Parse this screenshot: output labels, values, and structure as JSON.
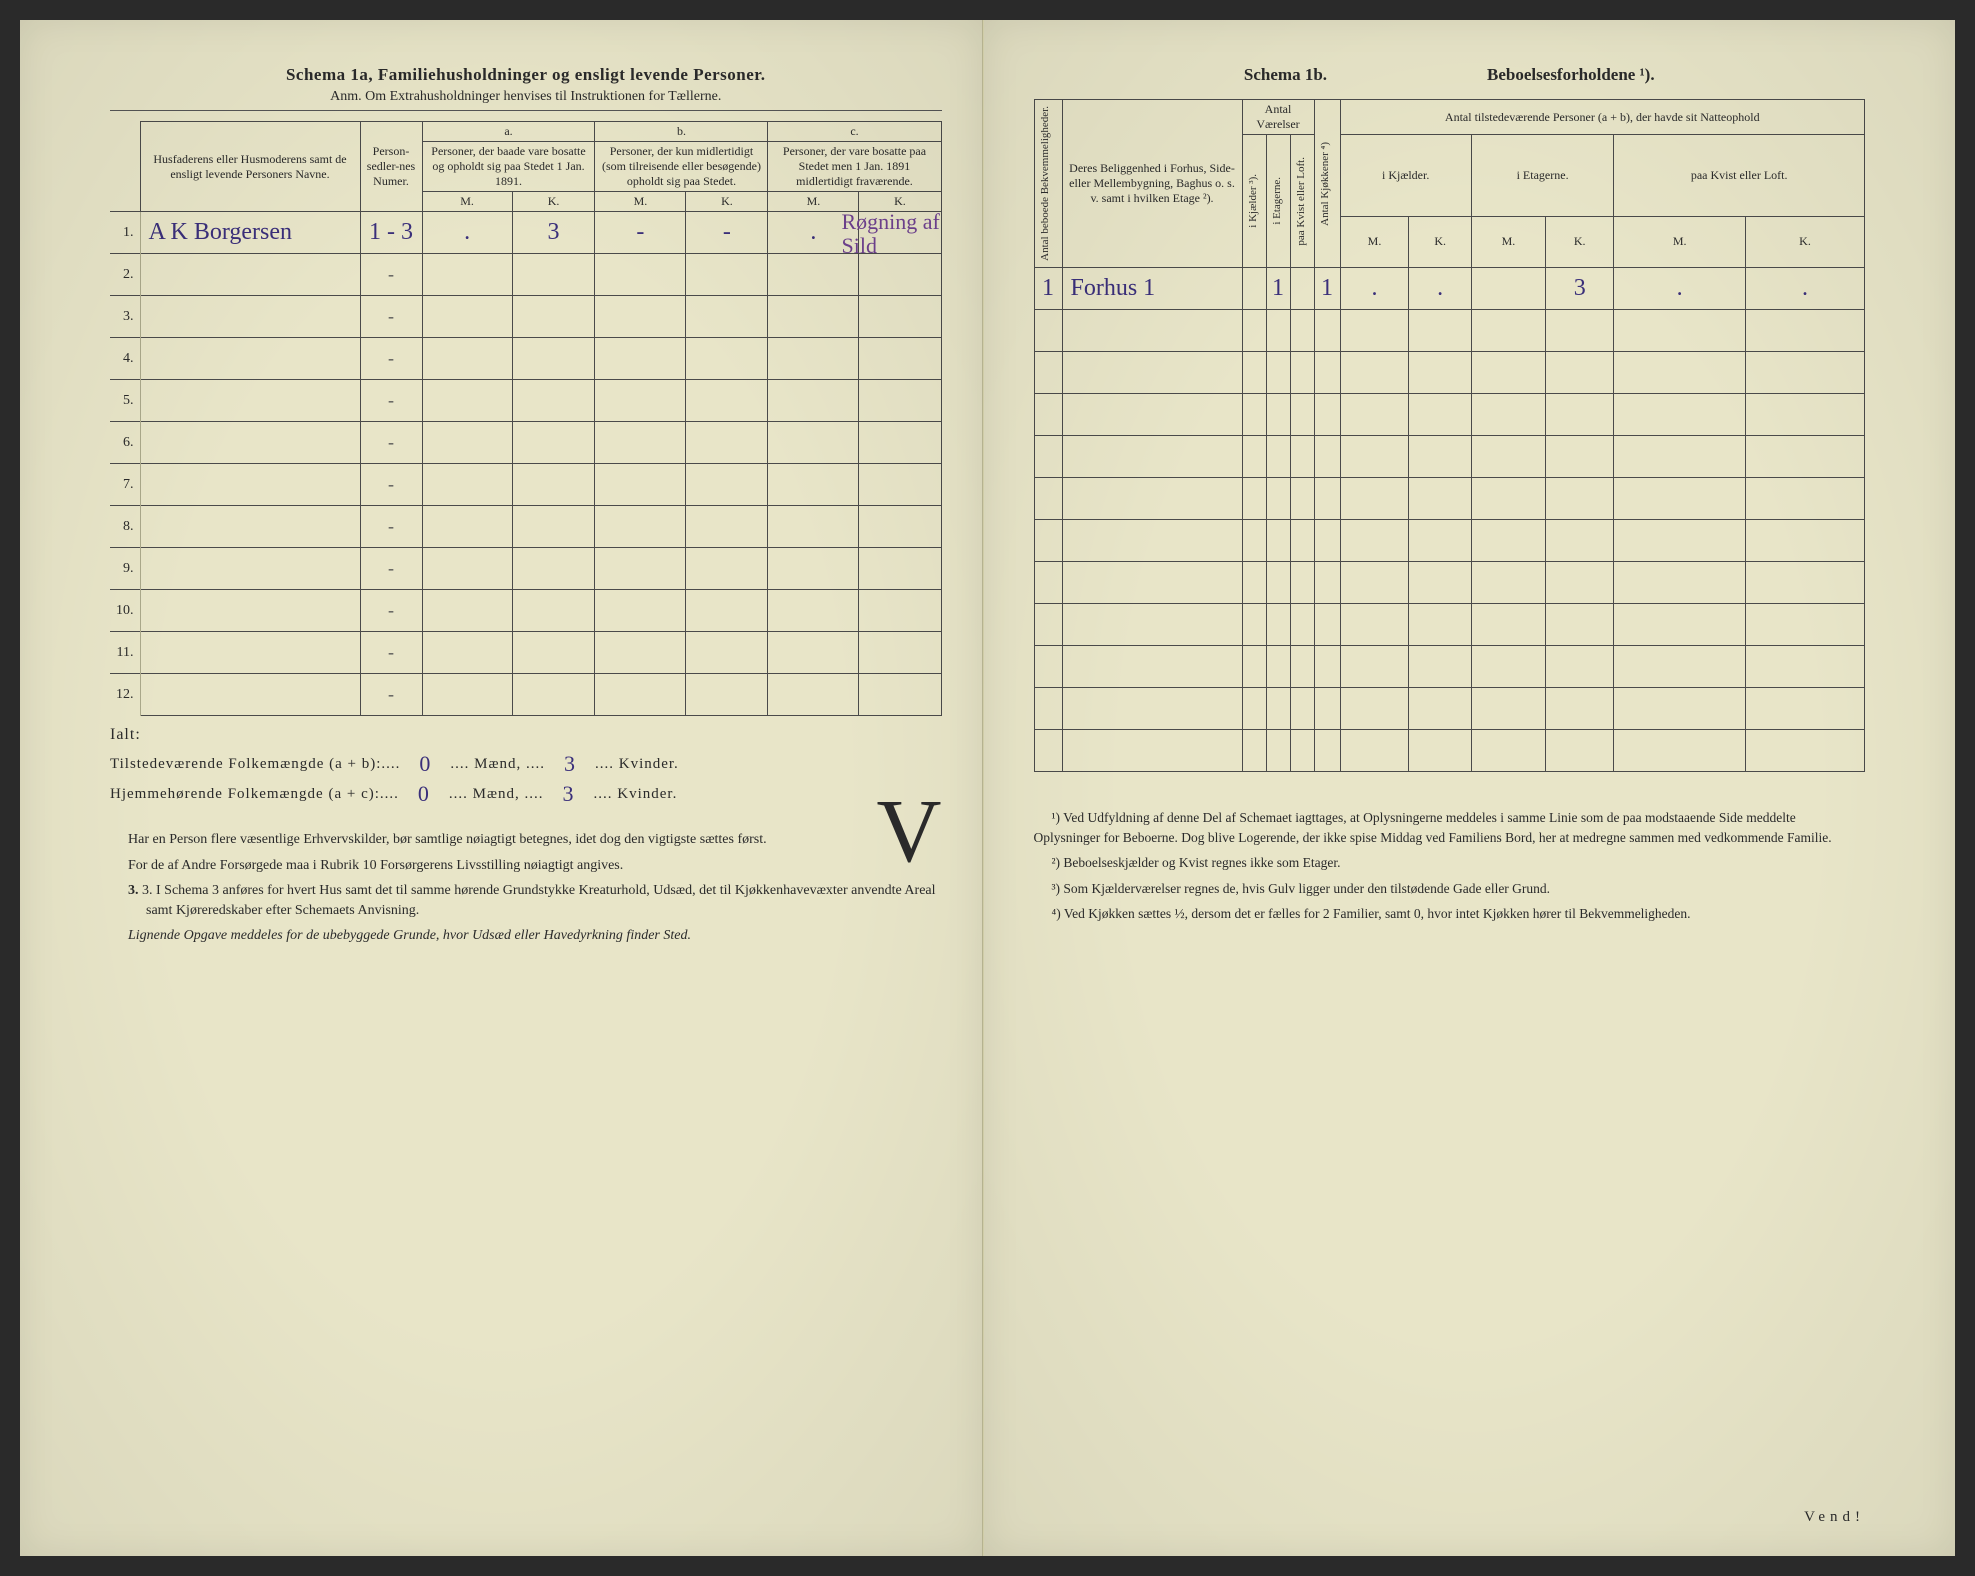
{
  "left": {
    "title": "Schema 1a,  Familiehusholdninger og ensligt levende Personer.",
    "sub": "Anm. Om Extrahusholdninger henvises til Instruktionen for Tællerne.",
    "headers": {
      "name": "Husfaderens eller Husmoderens samt de ensligt levende Personers Navne.",
      "numer": "Person-sedler-nes Numer.",
      "a_label": "a.",
      "a": "Personer, der baade vare bosatte og opholdt sig paa Stedet 1 Jan. 1891.",
      "b_label": "b.",
      "b": "Personer, der kun midlertidigt (som tilreisende eller besøgende) opholdt sig paa Stedet.",
      "c_label": "c.",
      "c": "Personer, der vare bosatte paa Stedet men 1 Jan. 1891 midlertidigt fraværende.",
      "m": "M.",
      "k": "K."
    },
    "rows": [
      {
        "n": "1.",
        "name": "A K Borgersen",
        "numer": "1 - 3",
        "aM": ".",
        "aK": "3",
        "bM": "-",
        "bK": "-",
        "cM": ".",
        "cK": "",
        "margin": "Røgning af Sild"
      },
      {
        "n": "2.",
        "numer": "-"
      },
      {
        "n": "3.",
        "numer": "-"
      },
      {
        "n": "4.",
        "numer": "-"
      },
      {
        "n": "5.",
        "numer": "-"
      },
      {
        "n": "6.",
        "numer": "-"
      },
      {
        "n": "7.",
        "numer": "-"
      },
      {
        "n": "8.",
        "numer": "-"
      },
      {
        "n": "9.",
        "numer": "-"
      },
      {
        "n": "10.",
        "numer": "-"
      },
      {
        "n": "11.",
        "numer": "-"
      },
      {
        "n": "12.",
        "numer": "-"
      }
    ],
    "totals": {
      "ialt": "Ialt:",
      "line1_label": "Tilstedeværende Folkemængde (a + b):",
      "line1_m": "0",
      "maend": "Mænd,",
      "line1_k": "3",
      "kvinder": "Kvinder.",
      "line2_label": "Hjemmehørende Folkemængde (a + c):",
      "line2_m": "0",
      "line2_k": "3"
    },
    "notes": [
      "Har en Person flere væsentlige Erhvervskilder, bør samtlige nøiagtigt betegnes, idet dog den vigtigste sættes først.",
      "For de af Andre Forsørgede maa i Rubrik 10 Forsørgerens Livsstilling nøiagtigt angives.",
      "3. I Schema 3 anføres for hvert Hus samt det til samme hørende Grundstykke Kreaturhold, Udsæd, det til Kjøkkenhavevæxter anvendte Areal samt Kjøreredskaber efter Schemaets Anvisning.",
      "Lignende Opgave meddeles for de ubebyggede Grunde, hvor Udsæd eller Havedyrkning finder Sted."
    ],
    "bigV": "V"
  },
  "right": {
    "title_a": "Schema 1b.",
    "title_b": "Beboelsesforholdene ¹).",
    "headers": {
      "antal_bekv": "Antal beboede Bekvemmeligheder.",
      "beligg": "Deres Beliggenhed i Forhus, Side- eller Mellembygning, Baghus o. s. v. samt i hvilken Etage ²).",
      "antal_vaer": "Antal Værelser",
      "i_kjaelder": "i Kjælder ³).",
      "i_etagerne": "i Etagerne.",
      "paa_kvist": "paa Kvist eller Loft.",
      "antal_kjok": "Antal Kjøkkener ⁴)",
      "natte": "Antal tilstedeværende Personer (a + b), der havde sit Natteophold",
      "n_kjael": "i Kjælder.",
      "n_etag": "i Etagerne.",
      "n_kvist": "paa Kvist eller Loft.",
      "m": "M.",
      "k": "K."
    },
    "rows": [
      {
        "bekv": "1",
        "beligg": "Forhus 1",
        "kj": "",
        "et": "1",
        "kv": "",
        "kjok": "1",
        "nKjM": ".",
        "nKjK": ".",
        "nEtM": "",
        "nEtK": "3",
        "nKvM": ".",
        "nKvK": "."
      },
      {},
      {},
      {},
      {},
      {},
      {},
      {},
      {},
      {},
      {},
      {}
    ],
    "footnotes": [
      "¹) Ved Udfyldning af denne Del af Schemaet iagttages, at Oplysningerne meddeles i samme Linie som de paa modstaaende Side meddelte Oplysninger for Beboerne. Dog blive Logerende, der ikke spise Middag ved Familiens Bord, her at medregne sammen med vedkommende Familie.",
      "²) Beboelseskjælder og Kvist regnes ikke som Etager.",
      "³) Som Kjælderværelser regnes de, hvis Gulv ligger under den tilstødende Gade eller Grund.",
      "⁴) Ved Kjøkken sættes ½, dersom det er fælles for 2 Familier, samt 0, hvor intet Kjøkken hører til Bekvemmeligheden."
    ],
    "vend": "Vend!"
  }
}
